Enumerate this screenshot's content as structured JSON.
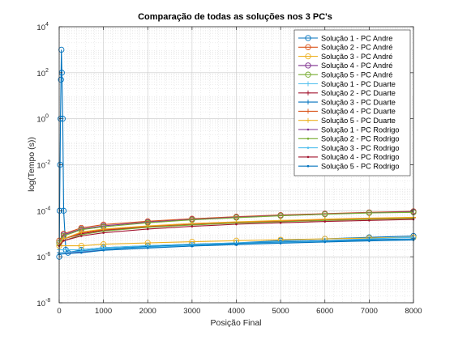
{
  "chart_data": {
    "type": "line",
    "title": "Comparação de todas as soluções nos 3 PC's",
    "xlabel": "Posição Final",
    "ylabel": "log(Tempo (s))",
    "xlim": [
      0,
      8000
    ],
    "ylim": [
      1e-08,
      10000
    ],
    "yscale": "log",
    "grid": true,
    "minor_grid": true,
    "legend_position": "top-right",
    "x_ticks": [
      0,
      1000,
      2000,
      3000,
      4000,
      5000,
      6000,
      7000,
      8000
    ],
    "x_tick_labels": [
      "0",
      "1000",
      "2000",
      "3000",
      "4000",
      "5000",
      "6000",
      "7000",
      "8000"
    ],
    "y_ticks": [
      {
        "value": 1e-08,
        "base": "10",
        "exp": "-8"
      },
      {
        "value": 1e-06,
        "base": "10",
        "exp": "-6"
      },
      {
        "value": 0.0001,
        "base": "10",
        "exp": "-4"
      },
      {
        "value": 0.01,
        "base": "10",
        "exp": "-2"
      },
      {
        "value": 1,
        "base": "10",
        "exp": "0"
      },
      {
        "value": 100,
        "base": "10",
        "exp": "2"
      },
      {
        "value": 10000,
        "base": "10",
        "exp": "4"
      }
    ],
    "series": [
      {
        "name": "Solução 1 - PC Andre",
        "color": "#0072BD",
        "marker": "circle",
        "x": [
          1,
          10,
          20,
          30,
          40,
          50,
          60,
          80,
          100,
          150,
          200,
          500,
          1000,
          2000,
          3000,
          4000,
          5000,
          6000,
          7000,
          8000
        ],
        "y": [
          1e-06,
          0.0001,
          0.01,
          1,
          50,
          1000,
          100,
          1,
          0.0001,
          2e-06,
          1.5e-06,
          2e-06,
          2.5e-06,
          3e-06,
          3.5e-06,
          4e-06,
          5e-06,
          6e-06,
          7e-06,
          8e-06
        ]
      },
      {
        "name": "Solução 2 - PC André",
        "color": "#D95319",
        "marker": "circle",
        "x": [
          1,
          100,
          500,
          1000,
          2000,
          3000,
          4000,
          5000,
          6000,
          7000,
          8000
        ],
        "y": [
          5e-06,
          1e-05,
          1.8e-05,
          2.5e-05,
          3.5e-05,
          4.5e-05,
          5.5e-05,
          6.5e-05,
          7.5e-05,
          8.5e-05,
          9.5e-05
        ]
      },
      {
        "name": "Solução 3 - PC André",
        "color": "#EDB120",
        "marker": "circle",
        "x": [
          1,
          500,
          1000,
          2000,
          3000,
          4000,
          5000,
          6000,
          7000,
          8000
        ],
        "y": [
          3e-06,
          3e-06,
          3.5e-06,
          4e-06,
          4.5e-06,
          5e-06,
          5.5e-06,
          6e-06,
          6.5e-06,
          7e-06
        ]
      },
      {
        "name": "Solução 4 - PC André",
        "color": "#7E2F8E",
        "marker": "circle",
        "x": [
          1,
          100,
          500,
          1000,
          2000,
          3000,
          4000,
          5000,
          6000,
          7000,
          8000
        ],
        "y": [
          4e-06,
          9e-06,
          1.6e-05,
          2.2e-05,
          3.2e-05,
          4.2e-05,
          5.2e-05,
          6.2e-05,
          7.2e-05,
          8.2e-05,
          9e-05
        ]
      },
      {
        "name": "Solução 5 - PC André",
        "color": "#77AC30",
        "marker": "circle",
        "x": [
          1,
          100,
          500,
          1000,
          2000,
          3000,
          4000,
          5000,
          6000,
          7000,
          8000
        ],
        "y": [
          4e-06,
          8e-06,
          1.5e-05,
          2e-05,
          3e-05,
          4e-05,
          5e-05,
          6e-05,
          7e-05,
          8e-05,
          8.5e-05
        ]
      },
      {
        "name": "Solução 1 - PC Duarte",
        "color": "#4DBEEE",
        "marker": "plus",
        "x": [
          1,
          500,
          1000,
          2000,
          3000,
          4000,
          5000,
          6000,
          7000,
          8000
        ],
        "y": [
          2e-06,
          2e-06,
          2.5e-06,
          3e-06,
          3.5e-06,
          4e-06,
          4.5e-06,
          5e-06,
          6e-06,
          7e-06
        ]
      },
      {
        "name": "Solução 2 - PC Duarte",
        "color": "#A2142F",
        "marker": "plus",
        "x": [
          1,
          100,
          500,
          1000,
          2000,
          3000,
          4000,
          5000,
          6000,
          7000,
          8000
        ],
        "y": [
          3e-06,
          6e-06,
          1e-05,
          1.4e-05,
          2e-05,
          2.5e-05,
          3e-05,
          3.5e-05,
          4e-05,
          4.5e-05,
          5e-05
        ]
      },
      {
        "name": "Solução 3 - PC Duarte",
        "color": "#0072BD",
        "marker": "plus",
        "x": [
          1,
          500,
          1000,
          2000,
          3000,
          4000,
          5000,
          6000,
          7000,
          8000
        ],
        "y": [
          1.5e-06,
          1.8e-06,
          2.2e-06,
          2.8e-06,
          3.3e-06,
          3.8e-06,
          4.3e-06,
          5e-06,
          5.5e-06,
          6e-06
        ]
      },
      {
        "name": "Solução 4 - PC Duarte",
        "color": "#D95319",
        "marker": "plus",
        "x": [
          1,
          100,
          500,
          1000,
          2000,
          3000,
          4000,
          5000,
          6000,
          7000,
          8000
        ],
        "y": [
          3e-06,
          6e-06,
          1.1e-05,
          1.5e-05,
          2.1e-05,
          2.6e-05,
          3.1e-05,
          3.6e-05,
          4.1e-05,
          4.6e-05,
          5e-05
        ]
      },
      {
        "name": "Solução 5 - PC Duarte",
        "color": "#EDB120",
        "marker": "plus",
        "x": [
          1,
          100,
          500,
          1000,
          2000,
          3000,
          4000,
          5000,
          6000,
          7000,
          8000
        ],
        "y": [
          3e-06,
          6e-06,
          1.2e-05,
          1.6e-05,
          2.2e-05,
          2.8e-05,
          3.3e-05,
          3.8e-05,
          4.3e-05,
          4.8e-05,
          5.2e-05
        ]
      },
      {
        "name": "Solução 1 - PC Rodrigo",
        "color": "#7E2F8E",
        "marker": "dot",
        "x": [
          1,
          500,
          1000,
          2000,
          3000,
          4000,
          5000,
          6000,
          7000,
          8000
        ],
        "y": [
          1.5e-06,
          1.6e-06,
          2e-06,
          2.5e-06,
          3e-06,
          3.5e-06,
          4e-06,
          4.5e-06,
          5e-06,
          5.5e-06
        ]
      },
      {
        "name": "Solução 2 - PC Rodrigo",
        "color": "#77AC30",
        "marker": "dot",
        "x": [
          1,
          100,
          500,
          1000,
          2000,
          3000,
          4000,
          5000,
          6000,
          7000,
          8000
        ],
        "y": [
          3e-06,
          5e-06,
          9e-06,
          1.3e-05,
          1.9e-05,
          2.4e-05,
          2.9e-05,
          3.3e-05,
          3.8e-05,
          4.2e-05,
          4.6e-05
        ]
      },
      {
        "name": "Solução 3 - PC Rodrigo",
        "color": "#4DBEEE",
        "marker": "dot",
        "x": [
          1,
          500,
          1000,
          2000,
          3000,
          4000,
          5000,
          6000,
          7000,
          8000
        ],
        "y": [
          1.5e-06,
          1.7e-06,
          2.1e-06,
          2.6e-06,
          3.1e-06,
          3.6e-06,
          4.1e-06,
          4.6e-06,
          5.1e-06,
          5.6e-06
        ]
      },
      {
        "name": "Solução 4 - PC Rodrigo",
        "color": "#A2142F",
        "marker": "dot",
        "x": [
          1,
          100,
          500,
          1000,
          2000,
          3000,
          4000,
          5000,
          6000,
          7000,
          8000
        ],
        "y": [
          3e-06,
          5e-06,
          8e-06,
          1.1e-05,
          1.6e-05,
          2.1e-05,
          2.6e-05,
          3e-05,
          3.4e-05,
          3.8e-05,
          4.2e-05
        ]
      },
      {
        "name": "Solução 5 - PC Rodrigo",
        "color": "#0072BD",
        "marker": "dot",
        "x": [
          1,
          500,
          1000,
          2000,
          3000,
          4000,
          5000,
          6000,
          7000,
          8000
        ],
        "y": [
          1.3e-06,
          1.5e-06,
          1.9e-06,
          2.4e-06,
          2.9e-06,
          3.4e-06,
          3.9e-06,
          4.4e-06,
          4.9e-06,
          5.4e-06
        ]
      }
    ]
  }
}
